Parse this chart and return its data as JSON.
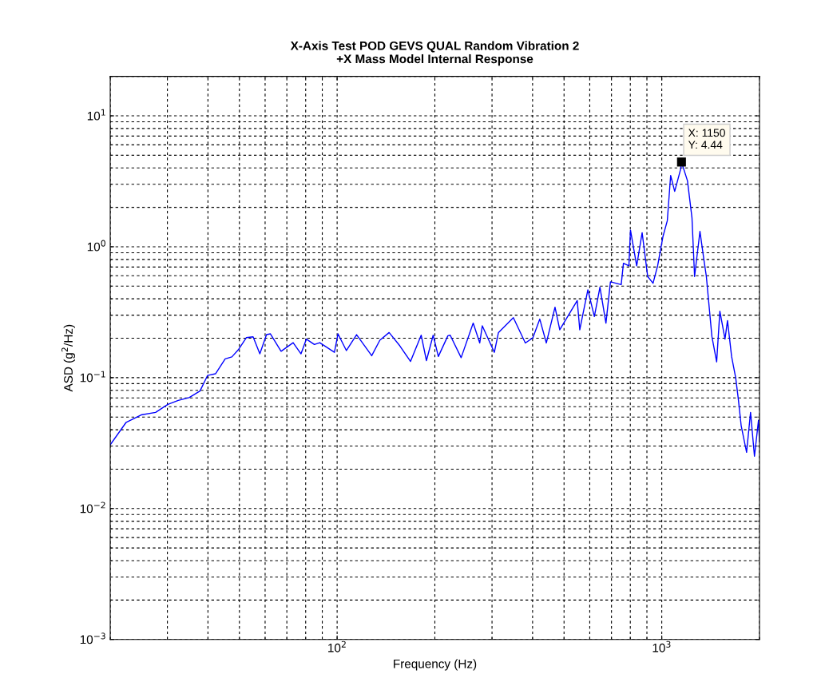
{
  "chart_data": {
    "type": "line",
    "title": "X-Axis Test POD GEVS QUAL Random Vibration 2\n+X Mass Model Internal Response",
    "xlabel": "Frequency (Hz)",
    "ylabel": "ASD (g$^{2}$/Hz)",
    "log": "xy",
    "grid": true,
    "line_style": "solid",
    "marker": "none",
    "xlim": [
      20,
      2000
    ],
    "xticks": [
      {
        "value": 100,
        "label": "10$^{2}$"
      },
      {
        "value": 1000,
        "label": "10$^{3}$"
      }
    ],
    "ylim": [
      0.001,
      20
    ],
    "yticks": [
      {
        "value": 0.001,
        "label": "10$^{−3}$"
      },
      {
        "value": 0.01,
        "label": "10$^{−2}$"
      },
      {
        "value": 0.1,
        "label": "10$^{−1}$"
      },
      {
        "value": 1,
        "label": "10$^{0}$"
      },
      {
        "value": 10,
        "label": "10$^{1}$"
      }
    ],
    "series": [
      {
        "color": "#0000ff",
        "x": [
          20,
          22.4,
          24.9,
          27.6,
          30.1,
          32.4,
          35.0,
          37.8,
          39.9,
          42.2,
          45.2,
          47.4,
          49.6,
          52.5,
          55.1,
          57.8,
          60.6,
          62.3,
          67.2,
          73.2,
          77.4,
          80.4,
          85.1,
          88.4,
          98.1,
          100.6,
          106.8,
          114.8,
          127.8,
          135.4,
          144.6,
          156,
          168.3,
          181.5,
          188.4,
          197.6,
          205,
          219.4,
          223,
          241,
          262.5,
          275,
          280,
          305,
          314,
          349,
          380,
          401,
          421,
          441,
          469,
          485,
          549,
          559,
          592,
          620,
          645,
          673,
          695,
          750,
          762,
          792,
          801,
          837,
          870,
          905,
          940,
          971,
          1008,
          1040,
          1065,
          1096,
          1144,
          1150,
          1200,
          1239,
          1262,
          1311,
          1346,
          1372,
          1427,
          1476,
          1510,
          1566,
          1594,
          1641,
          1689,
          1721,
          1756,
          1825,
          1877,
          1930,
          1986,
          2000
        ],
        "values": [
          0.0307,
          0.0456,
          0.0519,
          0.0543,
          0.0625,
          0.067,
          0.0704,
          0.079,
          0.104,
          0.107,
          0.139,
          0.144,
          0.163,
          0.202,
          0.205,
          0.152,
          0.213,
          0.216,
          0.159,
          0.185,
          0.152,
          0.197,
          0.179,
          0.185,
          0.156,
          0.216,
          0.161,
          0.213,
          0.147,
          0.193,
          0.221,
          0.175,
          0.133,
          0.211,
          0.135,
          0.211,
          0.145,
          0.209,
          0.211,
          0.142,
          0.261,
          0.184,
          0.249,
          0.156,
          0.221,
          0.287,
          0.184,
          0.202,
          0.28,
          0.184,
          0.345,
          0.232,
          0.388,
          0.232,
          0.469,
          0.293,
          0.491,
          0.261,
          0.539,
          0.514,
          0.748,
          0.714,
          1.34,
          0.714,
          1.28,
          0.592,
          0.526,
          0.714,
          1.19,
          1.58,
          3.5,
          2.65,
          3.94,
          4.44,
          3.19,
          1.66,
          0.592,
          1.31,
          0.82,
          0.592,
          0.206,
          0.132,
          0.322,
          0.197,
          0.273,
          0.145,
          0.1,
          0.0687,
          0.0431,
          0.0269,
          0.0543,
          0.0251,
          0.0473,
          0.0325
        ]
      }
    ],
    "annotations": [
      {
        "text": "X: 1150\nY: 4.44",
        "x": 1150,
        "y": 4.44
      }
    ]
  }
}
